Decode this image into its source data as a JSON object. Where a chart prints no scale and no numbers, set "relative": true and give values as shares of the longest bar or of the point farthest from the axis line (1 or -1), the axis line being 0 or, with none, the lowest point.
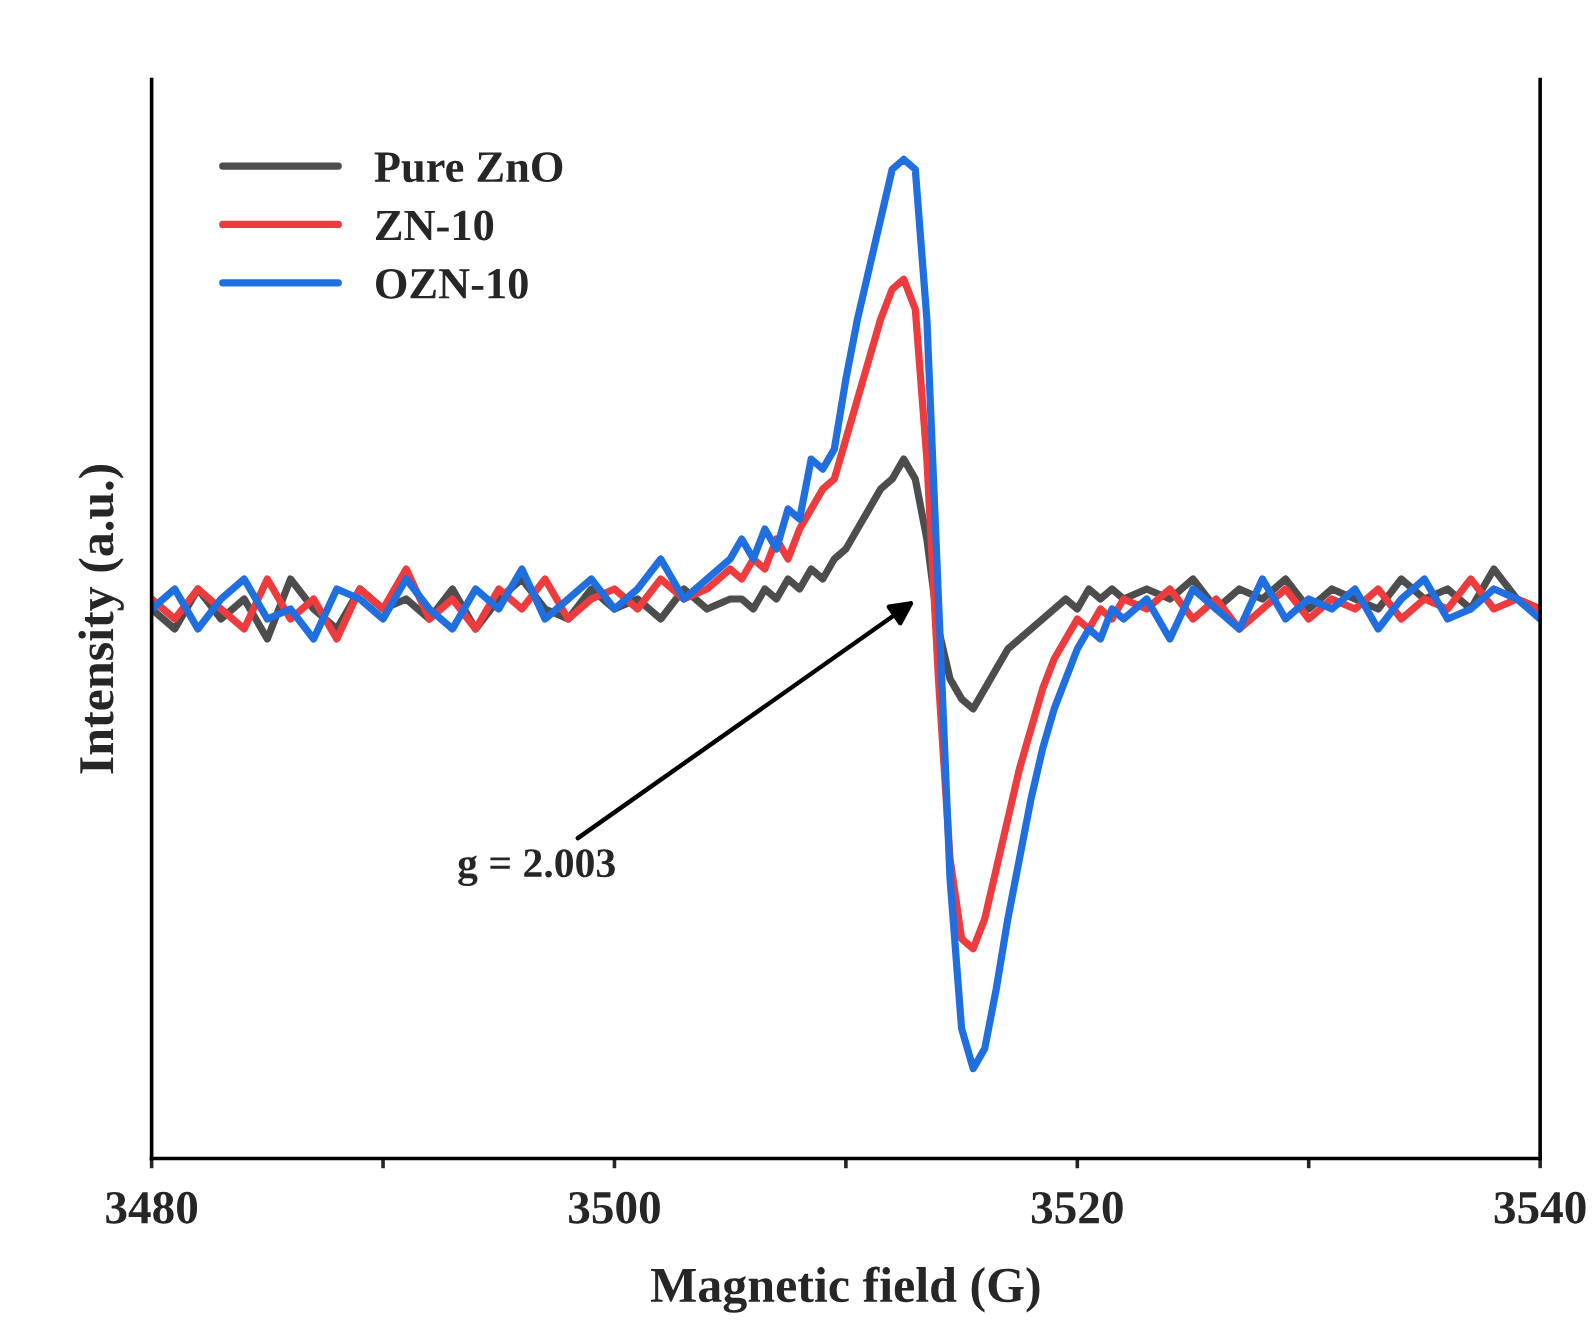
{
  "chart_data": {
    "type": "line",
    "relative": true,
    "xlabel": "Magnetic field (G)",
    "ylabel": "Intensity (a.u.)",
    "xlim": [
      3480,
      3540
    ],
    "xticks": [
      3480,
      {
        "value": 3490,
        "label": null
      },
      3500,
      {
        "value": 3510,
        "label": null
      },
      3520,
      {
        "value": 3530,
        "label": null
      },
      3540
    ],
    "tick_labels": "x",
    "grid": false,
    "legend": "top left",
    "line_style": "solid",
    "marker": "none",
    "x": [
      3480,
      3481,
      3482,
      3483,
      3484,
      3485,
      3486,
      3487,
      3488,
      3489,
      3490,
      3491,
      3492,
      3493,
      3494,
      3495,
      3496,
      3497,
      3498,
      3499,
      3500,
      3501,
      3502,
      3503,
      3504,
      3505,
      3505.5,
      3506,
      3506.5,
      3507,
      3507.5,
      3508,
      3508.5,
      3509,
      3509.5,
      3510,
      3510.5,
      3511,
      3511.5,
      3512,
      3512.5,
      3513,
      3513.5,
      3514,
      3514.5,
      3515,
      3515.5,
      3516,
      3516.5,
      3517,
      3517.5,
      3518,
      3518.5,
      3519,
      3519.5,
      3520,
      3520.5,
      3521,
      3521.5,
      3522,
      3523,
      3524,
      3525,
      3526,
      3527,
      3528,
      3529,
      3530,
      3531,
      3532,
      3533,
      3534,
      3535,
      3536,
      3537,
      3538,
      3539,
      3540
    ],
    "series": [
      {
        "name": "Pure ZnO",
        "color": "#4d4d4d",
        "values": [
          0.55,
          0.53,
          0.57,
          0.54,
          0.56,
          0.52,
          0.58,
          0.55,
          0.53,
          0.57,
          0.55,
          0.56,
          0.54,
          0.57,
          0.53,
          0.56,
          0.58,
          0.55,
          0.54,
          0.57,
          0.55,
          0.56,
          0.54,
          0.57,
          0.55,
          0.56,
          0.56,
          0.55,
          0.57,
          0.56,
          0.58,
          0.57,
          0.59,
          0.58,
          0.6,
          0.61,
          0.63,
          0.65,
          0.67,
          0.68,
          0.7,
          0.68,
          0.62,
          0.53,
          0.48,
          0.46,
          0.45,
          0.47,
          0.49,
          0.51,
          0.52,
          0.53,
          0.54,
          0.55,
          0.56,
          0.55,
          0.57,
          0.56,
          0.57,
          0.56,
          0.57,
          0.56,
          0.58,
          0.55,
          0.57,
          0.56,
          0.58,
          0.55,
          0.57,
          0.56,
          0.55,
          0.58,
          0.56,
          0.57,
          0.55,
          0.59,
          0.56,
          0.55
        ]
      },
      {
        "name": "ZN-10",
        "color": "#ee3b3e",
        "values": [
          0.56,
          0.54,
          0.57,
          0.55,
          0.53,
          0.58,
          0.54,
          0.56,
          0.52,
          0.57,
          0.55,
          0.59,
          0.54,
          0.56,
          0.53,
          0.57,
          0.55,
          0.58,
          0.54,
          0.56,
          0.57,
          0.55,
          0.58,
          0.56,
          0.57,
          0.59,
          0.58,
          0.6,
          0.59,
          0.62,
          0.6,
          0.63,
          0.65,
          0.67,
          0.68,
          0.72,
          0.76,
          0.8,
          0.84,
          0.87,
          0.88,
          0.85,
          0.7,
          0.48,
          0.3,
          0.22,
          0.21,
          0.24,
          0.29,
          0.34,
          0.39,
          0.43,
          0.47,
          0.5,
          0.52,
          0.54,
          0.53,
          0.55,
          0.54,
          0.56,
          0.55,
          0.57,
          0.54,
          0.56,
          0.53,
          0.55,
          0.57,
          0.54,
          0.56,
          0.55,
          0.57,
          0.54,
          0.56,
          0.55,
          0.58,
          0.55,
          0.56,
          0.55
        ]
      },
      {
        "name": "OZN-10",
        "color": "#1f6fe0",
        "values": [
          0.55,
          0.57,
          0.53,
          0.56,
          0.58,
          0.54,
          0.55,
          0.52,
          0.57,
          0.56,
          0.54,
          0.58,
          0.55,
          0.53,
          0.57,
          0.55,
          0.59,
          0.54,
          0.56,
          0.58,
          0.55,
          0.57,
          0.6,
          0.56,
          0.58,
          0.6,
          0.62,
          0.6,
          0.63,
          0.61,
          0.65,
          0.64,
          0.7,
          0.69,
          0.71,
          0.78,
          0.84,
          0.89,
          0.94,
          0.99,
          1.0,
          0.99,
          0.84,
          0.56,
          0.28,
          0.13,
          0.09,
          0.11,
          0.17,
          0.24,
          0.3,
          0.36,
          0.41,
          0.45,
          0.48,
          0.51,
          0.53,
          0.52,
          0.55,
          0.54,
          0.56,
          0.52,
          0.57,
          0.55,
          0.53,
          0.58,
          0.54,
          0.56,
          0.55,
          0.57,
          0.53,
          0.56,
          0.58,
          0.54,
          0.55,
          0.57,
          0.56,
          0.54
        ]
      }
    ],
    "annotations": [
      "g = 2.003"
    ]
  }
}
